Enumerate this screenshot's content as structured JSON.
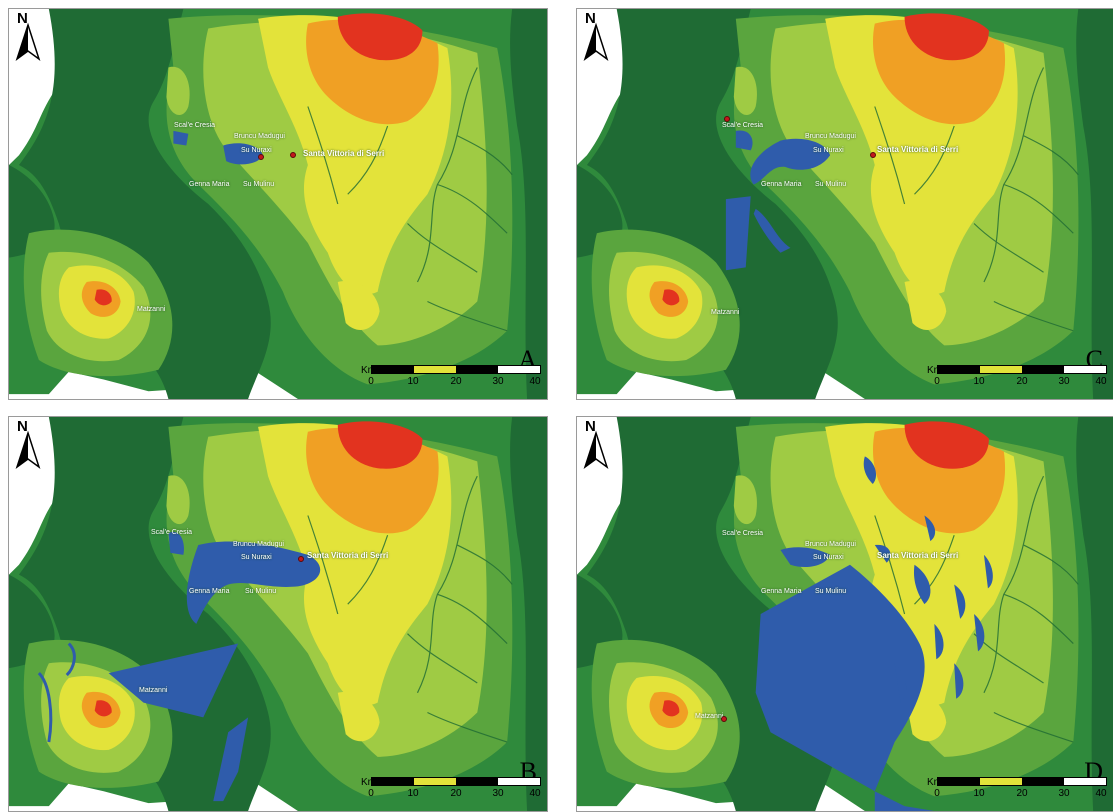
{
  "colors": {
    "lowland": "#1f6b34",
    "green": "#2f8a3c",
    "midgreen": "#5aa53e",
    "lightgreen": "#9fcb44",
    "yellow": "#e3e33a",
    "orange": "#f0a024",
    "red": "#e2331f",
    "viewshed": "#2f5cab",
    "sea": "#ffffff"
  },
  "north_arrow": {
    "label": "N",
    "icon": "north-arrow-icon"
  },
  "scale": {
    "unit_label": "Km",
    "ticks": [
      "0",
      "10",
      "20",
      "30",
      "40"
    ]
  },
  "panels": [
    {
      "id": "A",
      "letter": "A",
      "places": {
        "scal_e_cresia": "Scal'e Cresia",
        "bruncu_madugui": "Bruncu Madugui",
        "su_nuraxi": "Su Nuraxi",
        "santa_vittoria": "Santa Vittoria di Serri",
        "genna_maria": "Genna Maria",
        "su_mulinu": "Su Mulinu",
        "matzanni": "Matzanni"
      }
    },
    {
      "id": "C",
      "letter": "C",
      "places": {
        "scal_e_cresia": "Scal'e Cresia",
        "bruncu_madugui": "Bruncu Madugui",
        "su_nuraxi": "Su Nuraxi",
        "santa_vittoria": "Santa Vittoria di Serri",
        "genna_maria": "Genna Maria",
        "su_mulinu": "Su Mulinu",
        "matzanni": "Matzanni"
      }
    },
    {
      "id": "B",
      "letter": "B",
      "places": {
        "scal_e_cresia": "Scal'e Cresia",
        "bruncu_madugui": "Bruncu Madugui",
        "su_nuraxi": "Su Nuraxi",
        "santa_vittoria": "Santa Vittoria di Serri",
        "genna_maria": "Genna Maria",
        "su_mulinu": "Su Mulinu",
        "matzanni": "Matzanni"
      }
    },
    {
      "id": "D",
      "letter": "D",
      "places": {
        "scal_e_cresia": "Scal'e Cresia",
        "bruncu_madugui": "Bruncu Madugui",
        "su_nuraxi": "Su Nuraxi",
        "santa_vittoria": "Santa Vittoria di Serri",
        "genna_maria": "Genna Maria",
        "su_mulinu": "Su Mulinu",
        "matzanni": "Matzanni"
      }
    }
  ]
}
